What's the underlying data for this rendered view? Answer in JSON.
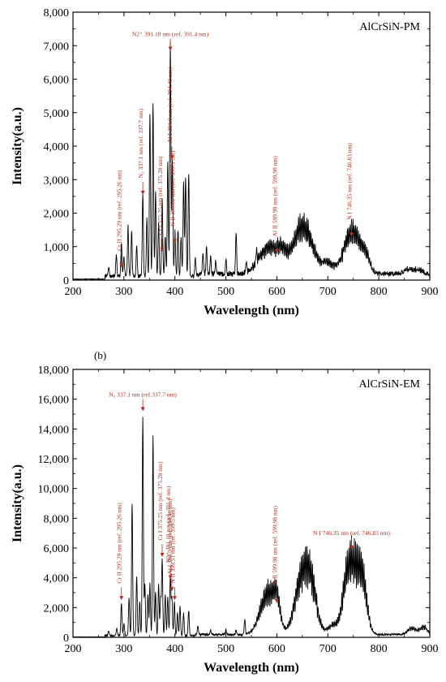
{
  "figure_label_b": "(b)",
  "chart_data": [
    {
      "type": "line",
      "legend": "AlCrSiN-PM",
      "xlabel": "Wavelength (nm)",
      "ylabel": "Intensity(a.u.)",
      "xlim": [
        200,
        900
      ],
      "ylim": [
        0,
        8000
      ],
      "xticks": [
        200,
        300,
        400,
        500,
        600,
        700,
        800,
        900
      ],
      "xtick_labels": [
        "200",
        "300",
        "400",
        "500",
        "600",
        "700",
        "800",
        "900"
      ],
      "yticks": [
        0,
        1000,
        2000,
        3000,
        4000,
        5000,
        6000,
        7000,
        8000
      ],
      "ytick_labels": [
        "0",
        "1,000",
        "2,000",
        "3,000",
        "4,000",
        "5,000",
        "6,000",
        "7,000",
        "8,000"
      ],
      "peaks": [
        [
          270,
          300
        ],
        [
          285,
          650
        ],
        [
          295,
          1000
        ],
        [
          300,
          550
        ],
        [
          308,
          1500
        ],
        [
          315,
          1350
        ],
        [
          325,
          900
        ],
        [
          337,
          2450
        ],
        [
          345,
          1700
        ],
        [
          351,
          4850
        ],
        [
          357,
          5200
        ],
        [
          362,
          2500
        ],
        [
          368,
          1600
        ],
        [
          375,
          2300
        ],
        [
          381,
          1200
        ],
        [
          386,
          3400
        ],
        [
          391,
          7000
        ],
        [
          395,
          3500
        ],
        [
          400,
          1400
        ],
        [
          406,
          1400
        ],
        [
          412,
          1200
        ],
        [
          417,
          2800
        ],
        [
          421,
          2950
        ],
        [
          427,
          3100
        ],
        [
          440,
          500
        ],
        [
          455,
          600
        ],
        [
          462,
          800
        ],
        [
          470,
          500
        ],
        [
          480,
          400
        ],
        [
          500,
          450
        ],
        [
          520,
          1200
        ],
        [
          540,
          300
        ],
        [
          560,
          350
        ]
      ],
      "bands": [
        [
          585,
          1100,
          20
        ],
        [
          610,
          500,
          8
        ],
        [
          640,
          1100,
          15
        ],
        [
          660,
          1300,
          15
        ],
        [
          700,
          450,
          12
        ],
        [
          740,
          1200,
          12
        ],
        [
          758,
          1050,
          12
        ],
        [
          775,
          550,
          8
        ],
        [
          860,
          180,
          10
        ],
        [
          880,
          130,
          8
        ]
      ],
      "annotations": [
        {
          "text": "Cr II 295.29 nm (ref. 295.26 nm)",
          "x": 295,
          "tip": 380,
          "rotate": true
        },
        {
          "text": "N₂ 337.1 nm (ref. 337.7 nm)",
          "x": 337,
          "tip": 2550,
          "rotate": true
        },
        {
          "text": "Cr I 375.25 nm (ref. 375.28 nm)",
          "x": 375,
          "tip": 850,
          "rotate": true
        },
        {
          "text": "N2⁺ 391.18 nm (ref. 391.4 nm)",
          "x": 391,
          "tip": 6850,
          "rotate": false
        },
        {
          "text": "Al I 394.0 nm (ref. 394.40 nm)",
          "x": 394,
          "tip": 3600,
          "rotate": true
        },
        {
          "text": "N II 399.51 nm (ref. 399.5 nm)",
          "x": 399.5,
          "tip": 1100,
          "rotate": true
        },
        {
          "text": "Al II 599.98 nm (ref. 599.98 nm)",
          "x": 600,
          "tip": 800,
          "rotate": true
        },
        {
          "text": "N I 746.35 nm (ref. 746.83 nm)",
          "x": 746.4,
          "tip": 1300,
          "rotate": true
        }
      ]
    },
    {
      "type": "line",
      "legend": "AlCrSiN-EM",
      "xlabel": "Wavelength (nm)",
      "ylabel": "Intensity(a.u.)",
      "xlim": [
        200,
        900
      ],
      "ylim": [
        0,
        18000
      ],
      "xticks": [
        200,
        300,
        400,
        500,
        600,
        700,
        800,
        900
      ],
      "xtick_labels": [
        "200",
        "300",
        "400",
        "500",
        "600",
        "700",
        "800",
        "900"
      ],
      "yticks": [
        0,
        2000,
        4000,
        6000,
        8000,
        10000,
        12000,
        14000,
        16000,
        18000
      ],
      "ytick_labels": [
        "0",
        "2,000",
        "4,000",
        "6,000",
        "8,000",
        "10,000",
        "12,000",
        "14,000",
        "16,000",
        "18,000"
      ],
      "peaks": [
        [
          270,
          300
        ],
        [
          286,
          500
        ],
        [
          295,
          2200
        ],
        [
          300,
          800
        ],
        [
          310,
          2500
        ],
        [
          316,
          8900
        ],
        [
          325,
          4000
        ],
        [
          331,
          2300
        ],
        [
          337,
          14700
        ],
        [
          341,
          3500
        ],
        [
          347,
          2800
        ],
        [
          351,
          3500
        ],
        [
          357,
          13400
        ],
        [
          362,
          2900
        ],
        [
          368,
          3500
        ],
        [
          372,
          2500
        ],
        [
          375,
          5100
        ],
        [
          381,
          2800
        ],
        [
          386,
          2600
        ],
        [
          391,
          4000
        ],
        [
          394,
          2600
        ],
        [
          399,
          2300
        ],
        [
          405,
          1500
        ],
        [
          410,
          2000
        ],
        [
          417,
          1500
        ],
        [
          427,
          1700
        ],
        [
          445,
          600
        ],
        [
          470,
          300
        ],
        [
          500,
          300
        ],
        [
          520,
          300
        ],
        [
          537,
          1000
        ]
      ],
      "bands": [
        [
          583,
          3800,
          15
        ],
        [
          600,
          2000,
          6
        ],
        [
          645,
          4000,
          12
        ],
        [
          665,
          5000,
          12
        ],
        [
          710,
          800,
          10
        ],
        [
          738,
          4200,
          10
        ],
        [
          755,
          5000,
          12
        ],
        [
          770,
          3000,
          8
        ],
        [
          865,
          600,
          8
        ],
        [
          888,
          700,
          7
        ]
      ],
      "annotations": [
        {
          "text": "Cr II 295.29 nm (ref. 295.26 nm)",
          "x": 295,
          "tip": 2500,
          "rotate": true
        },
        {
          "text": "N₂ 337.1 nm (ref.337.7 nm)",
          "x": 337,
          "tip": 15200,
          "rotate": false
        },
        {
          "text": "Cr I 375.25 nm (ref. 375.28 nm)",
          "x": 375,
          "tip": 5400,
          "rotate": true
        },
        {
          "text": "N2⁺ 391.18 nm (ref. 391.4 nm)",
          "x": 391,
          "tip": 3900,
          "rotate": true
        },
        {
          "text": "Al I 394.0 nm (ref. 394.40 nm)",
          "x": 394,
          "tip": 3100,
          "rotate": true
        },
        {
          "text": "N II 399.51 nm (ref. 399.5 nm)",
          "x": 399.5,
          "tip": 2500,
          "rotate": true
        },
        {
          "text": "Al II 599.98 nm (ref. 599.98 nm)",
          "x": 600,
          "tip": 2300,
          "rotate": true
        },
        {
          "text": "N I 746.35 nm (ref. 746.83 nm)",
          "x": 746.4,
          "tip": 5900,
          "rotate": false
        }
      ]
    }
  ]
}
